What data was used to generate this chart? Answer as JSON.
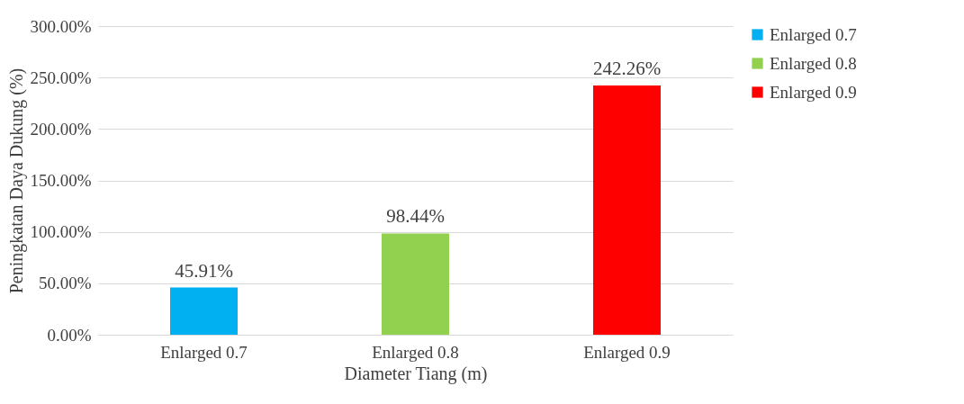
{
  "chart_data": {
    "type": "bar",
    "xlabel": "Diameter Tiang (m)",
    "ylabel": "Peningkatan Daya Dukung (%)",
    "categories": [
      "Enlarged 0.7",
      "Enlarged 0.8",
      "Enlarged 0.9"
    ],
    "series": [
      {
        "name": "Enlarged 0.7",
        "color": "#00b0f0",
        "values": [
          45.91,
          null,
          null
        ],
        "value_labels": [
          "45.91%",
          null,
          null
        ]
      },
      {
        "name": "Enlarged 0.8",
        "color": "#92d050",
        "values": [
          null,
          98.44,
          null
        ],
        "value_labels": [
          null,
          "98.44%",
          null
        ]
      },
      {
        "name": "Enlarged 0.9",
        "color": "#ff0000",
        "values": [
          null,
          null,
          242.26
        ],
        "value_labels": [
          null,
          null,
          "242.26%"
        ]
      }
    ],
    "ylim": [
      0,
      300
    ],
    "yticks": [
      {
        "value": 0,
        "label": "0.00%"
      },
      {
        "value": 50,
        "label": "50.00%"
      },
      {
        "value": 100,
        "label": "100.00%"
      },
      {
        "value": 150,
        "label": "150.00%"
      },
      {
        "value": 200,
        "label": "200.00%"
      },
      {
        "value": 250,
        "label": "250.00%"
      },
      {
        "value": 300,
        "label": "300.00%"
      }
    ],
    "grid": "y",
    "legend": "right"
  }
}
